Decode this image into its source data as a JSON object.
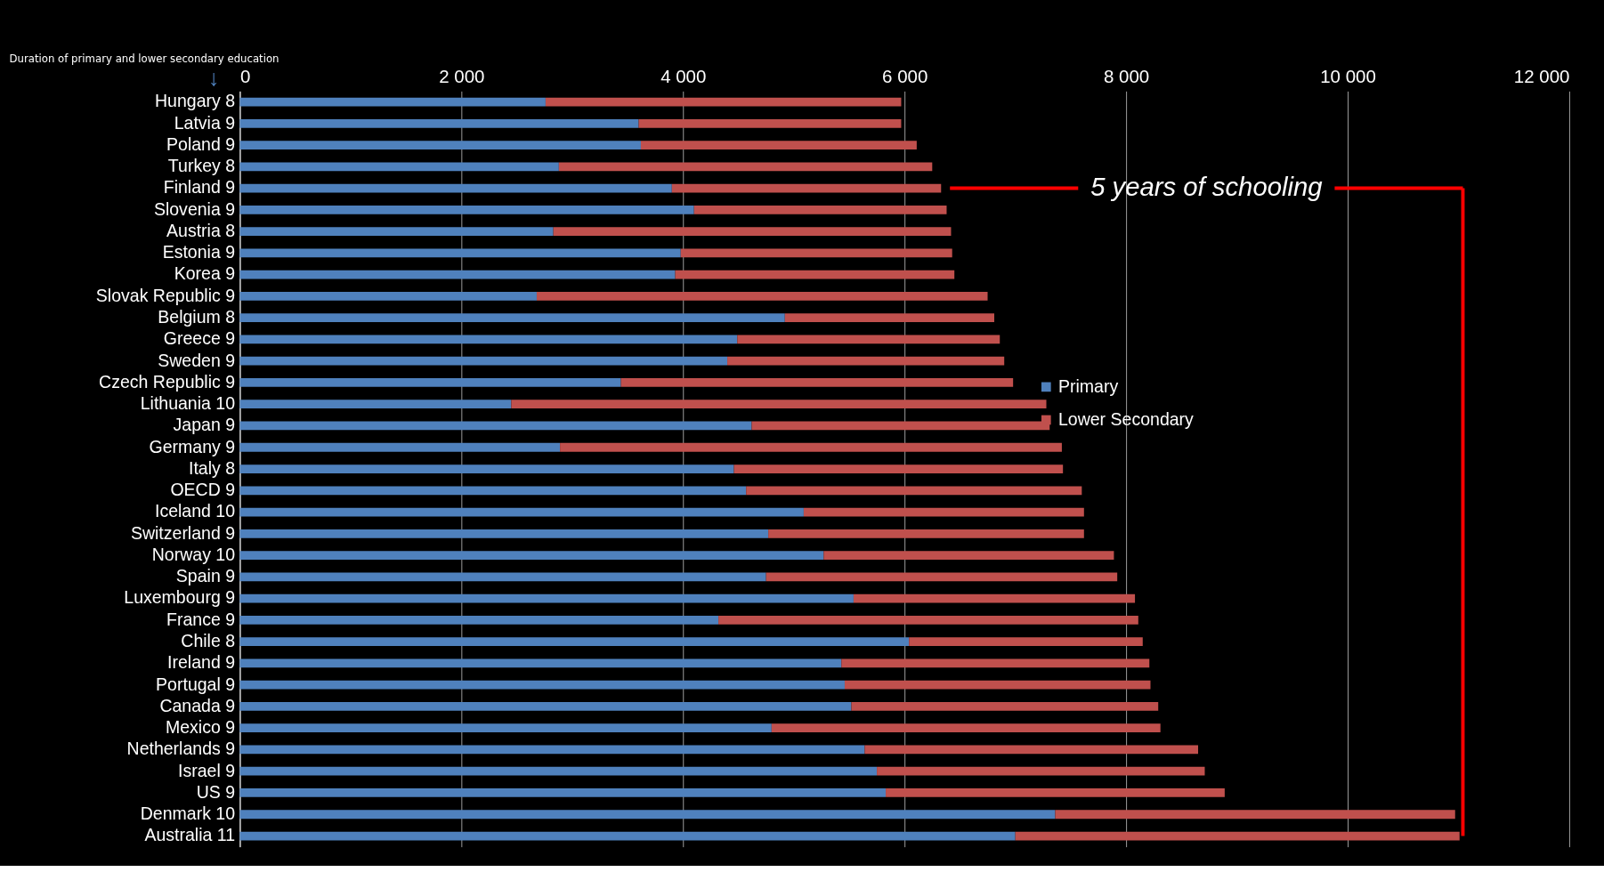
{
  "chart_data": {
    "type": "bar",
    "orientation": "horizontal",
    "stacked": true,
    "categories": [
      "Hungary  8",
      "Latvia  9",
      "Poland  9",
      "Turkey  8",
      "Finland  9",
      "Slovenia  9",
      "Austria  8",
      "Estonia  9",
      "Korea  9",
      "Slovak Republic  9",
      "Belgium  8",
      "Greece  9",
      "Sweden  9",
      "Czech Republic  9",
      "Lithuania 10",
      "Japan  9",
      "Germany  9",
      "Italy  8",
      "OECD  9",
      "Iceland 10",
      "Switzerland  9",
      "Norway 10",
      "Spain  9",
      "Luxembourg  9",
      "France  9",
      "Chile  8",
      "Ireland  9",
      "Portugal  9",
      "Canada  9",
      "Mexico  9",
      "Netherlands 9",
      "Israel  9",
      "US  9",
      "Denmark 10",
      "Australia 11"
    ],
    "series": [
      {
        "name": "Primary",
        "color": "#4f81bd",
        "values": [
          2760,
          3600,
          3620,
          2880,
          3900,
          4100,
          2830,
          3980,
          3930,
          2680,
          4920,
          4490,
          4400,
          3440,
          2450,
          4620,
          2890,
          4460,
          4570,
          5090,
          4770,
          5270,
          4750,
          5540,
          4320,
          6040,
          5430,
          5460,
          5520,
          4800,
          5640,
          5750,
          5830,
          7360,
          7000
        ]
      },
      {
        "name": "Lower Secondary",
        "color": "#c0504d",
        "values": [
          3210,
          2370,
          2490,
          3370,
          2430,
          2280,
          3590,
          2450,
          2520,
          4070,
          1890,
          2370,
          2500,
          3540,
          4830,
          2690,
          4530,
          2970,
          3030,
          2530,
          2850,
          2620,
          3170,
          2540,
          3790,
          2110,
          2780,
          2760,
          2770,
          3510,
          3010,
          2960,
          3060,
          3610,
          4010
        ]
      }
    ],
    "xlim": [
      0,
      12000
    ],
    "xticks": [
      0,
      {
        "value": 2000,
        "label": "2 000"
      },
      {
        "value": 4000,
        "label": "4 000"
      },
      {
        "value": 6000,
        "label": "6 000"
      },
      {
        "value": 8000,
        "label": "8 000"
      },
      {
        "value": 10000,
        "label": "10 000"
      },
      {
        "value": 12000,
        "label": "12 000"
      }
    ],
    "grid": "x",
    "legend": "right",
    "annotations": [
      "Duration of primary and lower secondary education",
      "↓",
      "5 years of schooling"
    ],
    "ref_lines": [
      {
        "axis": "x",
        "value": 11040,
        "color": "#ff0000"
      },
      {
        "axis": "y",
        "value": "Finland  9",
        "color": "#ff0000"
      }
    ]
  }
}
